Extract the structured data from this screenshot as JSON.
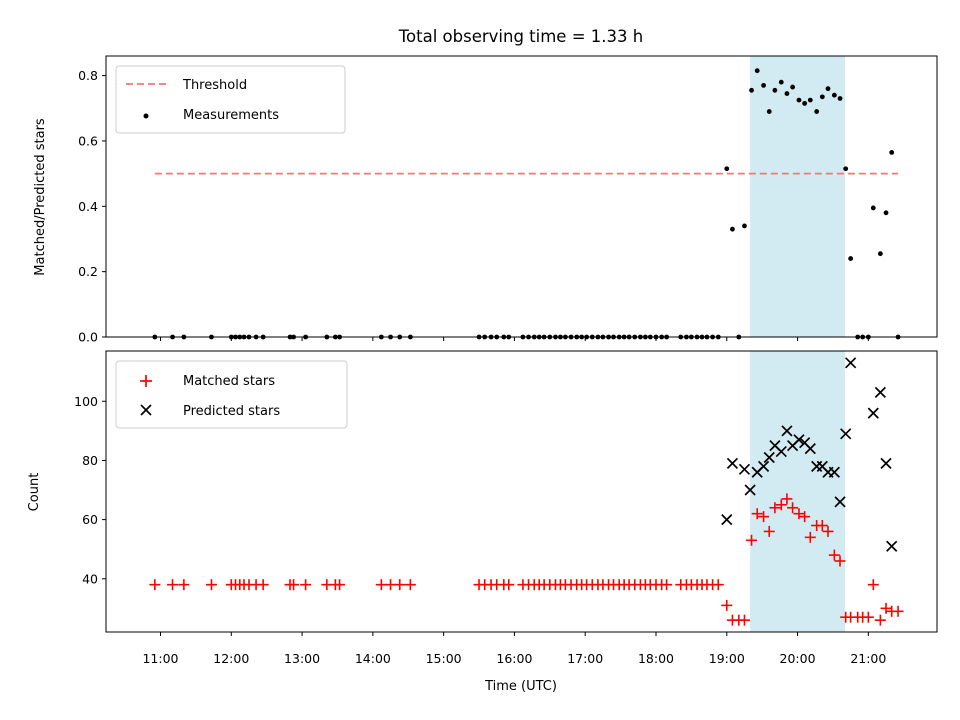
{
  "colors": {
    "threshold": "#f87575",
    "measurement": "#000000",
    "matched": "#ff0000",
    "predicted": "#000000",
    "span_fill": "#add8e6"
  },
  "chart_data": [
    {
      "type": "scatter",
      "title": "Total observing time = 1.33 h",
      "xlabel": "",
      "ylabel": "Matched/Predicted stars",
      "x_unit": "hours UTC",
      "xlim": [
        10.23,
        21.97
      ],
      "ylim": [
        0.0,
        0.86
      ],
      "yticks": [
        0.0,
        0.2,
        0.4,
        0.6,
        0.8
      ],
      "ytick_labels": [
        "0.0",
        "0.2",
        "0.4",
        "0.6",
        "0.8"
      ],
      "grid": false,
      "legend": {
        "position": "upper-left",
        "entries": [
          "Threshold",
          "Measurements"
        ]
      },
      "shaded_span": [
        19.33,
        20.67
      ],
      "threshold": {
        "name": "Threshold",
        "value": 0.5,
        "x_range": [
          10.92,
          21.42
        ],
        "style": "dashed"
      },
      "series": [
        {
          "name": "Measurements",
          "marker": "dot",
          "x": [
            10.92,
            11.17,
            11.33,
            11.72,
            12.0,
            12.06,
            12.12,
            12.18,
            12.25,
            12.35,
            12.45,
            12.83,
            12.88,
            13.05,
            13.35,
            13.47,
            13.53,
            14.12,
            14.25,
            14.38,
            14.53,
            15.5,
            15.58,
            15.67,
            15.75,
            15.85,
            15.92,
            16.12,
            16.2,
            16.28,
            16.35,
            16.42,
            16.5,
            16.58,
            16.65,
            16.72,
            16.8,
            16.88,
            16.95,
            17.02,
            17.1,
            17.18,
            17.25,
            17.33,
            17.4,
            17.48,
            17.55,
            17.62,
            17.7,
            17.78,
            17.85,
            17.92,
            18.0,
            18.08,
            18.15,
            18.35,
            18.43,
            18.5,
            18.58,
            18.65,
            18.72,
            18.8,
            18.88,
            19.0,
            19.08,
            19.17,
            19.25,
            19.35,
            19.43,
            19.52,
            19.6,
            19.68,
            19.77,
            19.85,
            19.93,
            20.02,
            20.1,
            20.18,
            20.27,
            20.35,
            20.43,
            20.52,
            20.6,
            20.68,
            20.75,
            20.85,
            20.92,
            21.0,
            21.07,
            21.17,
            21.25,
            21.33,
            21.42
          ],
          "y": [
            0,
            0,
            0,
            0,
            0,
            0,
            0,
            0,
            0,
            0,
            0,
            0,
            0,
            0,
            0,
            0,
            0,
            0,
            0,
            0,
            0,
            0,
            0,
            0,
            0,
            0,
            0,
            0,
            0,
            0,
            0,
            0,
            0,
            0,
            0,
            0,
            0,
            0,
            0,
            0,
            0,
            0,
            0,
            0,
            0,
            0,
            0,
            0,
            0,
            0,
            0,
            0,
            0,
            0,
            0,
            0,
            0,
            0,
            0,
            0,
            0,
            0,
            0,
            0.515,
            0.33,
            0,
            0.34,
            0.755,
            0.815,
            0.77,
            0.69,
            0.755,
            0.78,
            0.745,
            0.765,
            0.725,
            0.715,
            0.725,
            0.69,
            0.735,
            0.76,
            0.74,
            0.73,
            0.515,
            0.24,
            0,
            0,
            0,
            0.395,
            0.255,
            0.38,
            0.565,
            0
          ]
        }
      ]
    },
    {
      "type": "scatter",
      "title": "",
      "xlabel": "Time (UTC)",
      "ylabel": "Count",
      "x_unit": "hours UTC",
      "xlim": [
        10.23,
        21.97
      ],
      "ylim": [
        22,
        117
      ],
      "yticks": [
        40,
        60,
        80,
        100
      ],
      "ytick_labels": [
        "40",
        "60",
        "80",
        "100"
      ],
      "xticks": [
        11,
        12,
        13,
        14,
        15,
        16,
        17,
        18,
        19,
        20,
        21
      ],
      "xtick_labels": [
        "11:00",
        "12:00",
        "13:00",
        "14:00",
        "15:00",
        "16:00",
        "17:00",
        "18:00",
        "19:00",
        "20:00",
        "21:00"
      ],
      "grid": false,
      "legend": {
        "position": "upper-left",
        "entries": [
          "Matched stars",
          "Predicted stars"
        ]
      },
      "shaded_span": [
        19.33,
        20.67
      ],
      "series": [
        {
          "name": "Matched stars",
          "marker": "plus",
          "x": [
            10.92,
            11.17,
            11.33,
            11.72,
            12.0,
            12.06,
            12.12,
            12.18,
            12.25,
            12.35,
            12.45,
            12.83,
            12.88,
            13.05,
            13.35,
            13.47,
            13.53,
            14.12,
            14.25,
            14.38,
            14.53,
            15.5,
            15.58,
            15.67,
            15.75,
            15.85,
            15.92,
            16.12,
            16.2,
            16.28,
            16.35,
            16.42,
            16.5,
            16.58,
            16.65,
            16.72,
            16.8,
            16.88,
            16.95,
            17.02,
            17.1,
            17.18,
            17.25,
            17.33,
            17.4,
            17.48,
            17.55,
            17.62,
            17.7,
            17.78,
            17.85,
            17.92,
            18.0,
            18.08,
            18.15,
            18.35,
            18.43,
            18.5,
            18.58,
            18.65,
            18.72,
            18.8,
            18.88,
            19.0,
            19.08,
            19.17,
            19.25,
            19.35,
            19.43,
            19.52,
            19.6,
            19.68,
            19.77,
            19.85,
            19.93,
            20.02,
            20.1,
            20.18,
            20.27,
            20.35,
            20.43,
            20.52,
            20.6,
            20.68,
            20.75,
            20.85,
            20.92,
            21.0,
            21.07,
            21.17,
            21.25,
            21.33,
            21.42
          ],
          "y": [
            38,
            38,
            38,
            38,
            38,
            38,
            38,
            38,
            38,
            38,
            38,
            38,
            38,
            38,
            38,
            38,
            38,
            38,
            38,
            38,
            38,
            38,
            38,
            38,
            38,
            38,
            38,
            38,
            38,
            38,
            38,
            38,
            38,
            38,
            38,
            38,
            38,
            38,
            38,
            38,
            38,
            38,
            38,
            38,
            38,
            38,
            38,
            38,
            38,
            38,
            38,
            38,
            38,
            38,
            38,
            38,
            38,
            38,
            38,
            38,
            38,
            38,
            38,
            31,
            26,
            26,
            26,
            53,
            62,
            61,
            56,
            64,
            65,
            67,
            64,
            62,
            61,
            54,
            58,
            58,
            56,
            48,
            46,
            27,
            27,
            27,
            27,
            27,
            38,
            26,
            30,
            29,
            29
          ]
        },
        {
          "name": "Predicted stars",
          "marker": "x",
          "x": [
            19.0,
            19.08,
            19.25,
            19.33,
            19.43,
            19.52,
            19.6,
            19.68,
            19.77,
            19.85,
            19.93,
            20.02,
            20.1,
            20.18,
            20.27,
            20.35,
            20.43,
            20.52,
            20.6,
            20.68,
            20.75,
            21.07,
            21.17,
            21.25,
            21.33
          ],
          "y": [
            60,
            79,
            77,
            70,
            76,
            78,
            81,
            85,
            83,
            90,
            85,
            87,
            86,
            84,
            78,
            78,
            76,
            76,
            66,
            89,
            113,
            96,
            103,
            79,
            51
          ]
        }
      ]
    }
  ]
}
